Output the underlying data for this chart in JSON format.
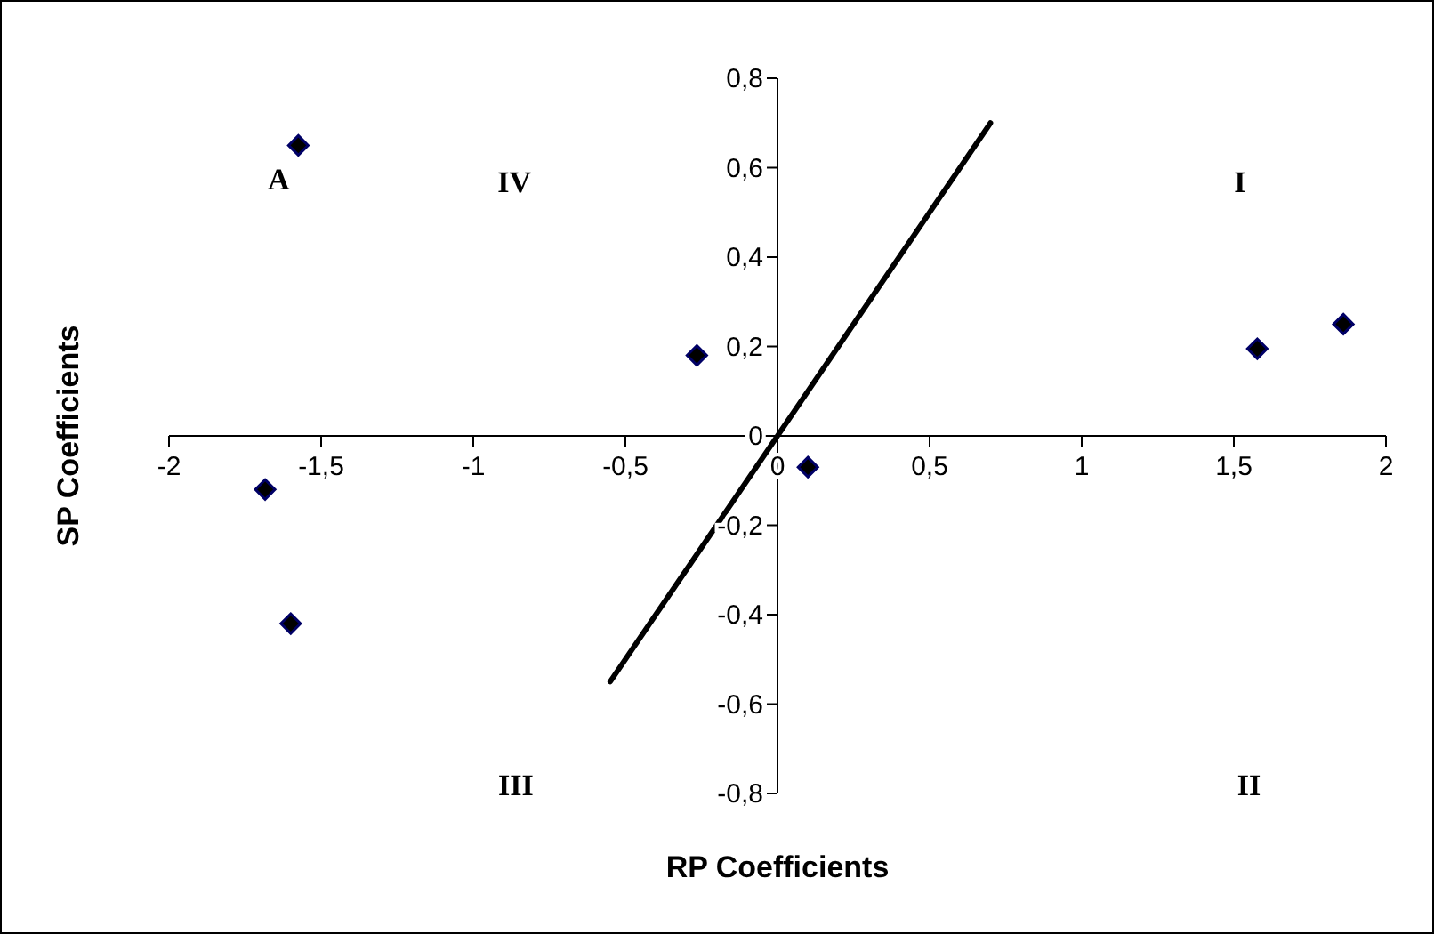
{
  "chart_data": {
    "type": "scatter",
    "xlabel": "RP Coefficients",
    "ylabel": "SP Coefficients",
    "xlim": [
      -2,
      2
    ],
    "ylim": [
      -0.8,
      0.8
    ],
    "xticks": [
      -2,
      {
        "value": -1.5,
        "label": "-1,5"
      },
      -1,
      {
        "value": -0.5,
        "label": "-0,5"
      },
      0,
      {
        "value": 0.5,
        "label": "0,5"
      },
      1,
      {
        "value": 1.5,
        "label": "1,5"
      },
      2
    ],
    "yticks": [
      {
        "value": -0.8,
        "label": "-0,8"
      },
      {
        "value": -0.6,
        "label": "-0,6"
      },
      {
        "value": -0.4,
        "label": "-0,4"
      },
      {
        "value": -0.2,
        "label": "-0,2"
      },
      0,
      {
        "value": 0.2,
        "label": "0,2"
      },
      {
        "value": 0.4,
        "label": "0,4"
      },
      {
        "value": 0.6,
        "label": "0,6"
      },
      {
        "value": 0.8,
        "label": "0,8"
      }
    ],
    "grid": false,
    "marker": "diamond",
    "series": [
      {
        "color": "#000066",
        "x": [
          -1.575,
          -1.684,
          -1.6,
          -0.265,
          0.1,
          1.577,
          1.86
        ],
        "values": [
          0.65,
          -0.12,
          -0.42,
          0.18,
          -0.07,
          0.195,
          0.25
        ]
      },
      {
        "type": "line",
        "color": "#000000",
        "marker": "none",
        "line_style": "solid",
        "x": [
          -0.55,
          0.7
        ],
        "values": [
          -0.55,
          0.7
        ]
      }
    ],
    "annotations": [
      {
        "text": "A",
        "x": -1.575,
        "y": 0.65
      },
      "IV",
      "I",
      "III",
      "II"
    ]
  }
}
